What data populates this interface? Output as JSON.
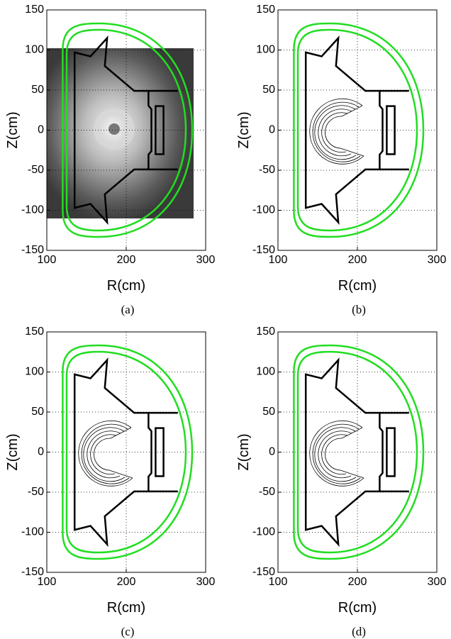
{
  "chart_data": [
    {
      "type": "line",
      "caption": "(a)",
      "xlabel": "R(cm)",
      "ylabel": "Z(cm)",
      "xlim": [
        100,
        300
      ],
      "ylim": [
        -150,
        150
      ],
      "xticks": [
        100,
        200,
        300
      ],
      "yticks": [
        -150,
        -100,
        -50,
        0,
        50,
        100,
        150
      ],
      "grid": true,
      "image": true,
      "emission": false
    },
    {
      "type": "line",
      "caption": "(b)",
      "xlabel": "R(cm)",
      "ylabel": "Z(cm)",
      "xlim": [
        100,
        300
      ],
      "ylim": [
        -150,
        150
      ],
      "xticks": [
        100,
        200,
        300
      ],
      "yticks": [
        -150,
        -100,
        -50,
        0,
        50,
        100,
        150
      ],
      "grid": true,
      "image": false,
      "emission": true
    },
    {
      "type": "line",
      "caption": "(c)",
      "xlabel": "R(cm)",
      "ylabel": "Z(cm)",
      "xlim": [
        100,
        300
      ],
      "ylim": [
        -150,
        150
      ],
      "xticks": [
        100,
        200,
        300
      ],
      "yticks": [
        -150,
        -100,
        -50,
        0,
        50,
        100,
        150
      ],
      "grid": true,
      "image": false,
      "emission": true
    },
    {
      "type": "line",
      "caption": "(d)",
      "xlabel": "R(cm)",
      "ylabel": "Z(cm)",
      "xlim": [
        100,
        300
      ],
      "ylim": [
        -150,
        150
      ],
      "xticks": [
        100,
        200,
        300
      ],
      "yticks": [
        -150,
        -100,
        -50,
        0,
        50,
        100,
        150
      ],
      "grid": true,
      "image": false,
      "emission": true
    }
  ]
}
